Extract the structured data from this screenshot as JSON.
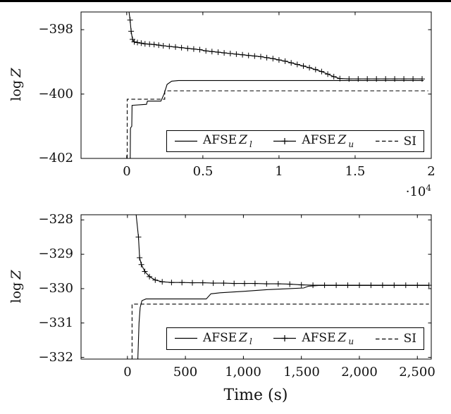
{
  "figure": {
    "background": "#ffffff",
    "line_color": "#000000"
  },
  "chart_data": [
    {
      "type": "line",
      "title": "",
      "ylabel_prefix": "log",
      "ylabel_var": "Z",
      "x_mult_base": "·10",
      "x_mult_exp": "4",
      "xlim": [
        -3000,
        20000
      ],
      "ylim": [
        -402,
        -397.45
      ],
      "xticks": [
        0,
        5000,
        10000,
        15000,
        20000
      ],
      "xtick_labels": [
        "0",
        "0.5",
        "1",
        "1.5",
        "2"
      ],
      "yticks": [
        -398,
        -400,
        -402
      ],
      "ytick_labels": [
        "−398",
        "−400",
        "−402"
      ],
      "grid": "off",
      "legend_position": "lower-right",
      "legend": [
        {
          "prefix": "AFSE",
          "var": "Z",
          "sub": "l",
          "style": "solid"
        },
        {
          "prefix": "AFSE",
          "var": "Z",
          "sub": "u",
          "style": "plus"
        },
        {
          "prefix": "SI",
          "var": "",
          "sub": "",
          "style": "dashed"
        }
      ],
      "series": [
        {
          "name": "AFSE Z_l",
          "style": "solid",
          "marker": "none",
          "points": [
            [
              230,
              -402
            ],
            [
              245,
              -401.1
            ],
            [
              255,
              -401.05
            ],
            [
              330,
              -401.0
            ],
            [
              350,
              -400.35
            ],
            [
              1300,
              -400.32
            ],
            [
              1360,
              -400.22
            ],
            [
              2250,
              -400.22
            ],
            [
              2450,
              -400.0
            ],
            [
              2650,
              -399.7
            ],
            [
              2950,
              -399.6
            ],
            [
              3400,
              -399.58
            ],
            [
              19500,
              -399.58
            ]
          ]
        },
        {
          "name": "AFSE Z_u",
          "style": "solid",
          "marker": "plus",
          "points": [
            [
              150,
              -397.45
            ],
            [
              220,
              -397.7
            ],
            [
              290,
              -398.05
            ],
            [
              380,
              -398.3
            ],
            [
              500,
              -398.38
            ],
            [
              700,
              -398.4
            ],
            [
              950,
              -398.42
            ],
            [
              1200,
              -398.44
            ],
            [
              1500,
              -398.45
            ],
            [
              1800,
              -398.46
            ],
            [
              2100,
              -398.48
            ],
            [
              2400,
              -398.5
            ],
            [
              2800,
              -398.52
            ],
            [
              3200,
              -398.54
            ],
            [
              3600,
              -398.56
            ],
            [
              4000,
              -398.58
            ],
            [
              4400,
              -398.6
            ],
            [
              4800,
              -398.62
            ],
            [
              5200,
              -398.66
            ],
            [
              5600,
              -398.68
            ],
            [
              6000,
              -398.7
            ],
            [
              6400,
              -398.72
            ],
            [
              6800,
              -398.74
            ],
            [
              7200,
              -398.76
            ],
            [
              7600,
              -398.78
            ],
            [
              8000,
              -398.8
            ],
            [
              8400,
              -398.82
            ],
            [
              8800,
              -398.84
            ],
            [
              9200,
              -398.87
            ],
            [
              9600,
              -398.9
            ],
            [
              10000,
              -398.94
            ],
            [
              10400,
              -398.98
            ],
            [
              10800,
              -399.03
            ],
            [
              11200,
              -399.08
            ],
            [
              11600,
              -399.13
            ],
            [
              12000,
              -399.18
            ],
            [
              12400,
              -399.24
            ],
            [
              12800,
              -399.3
            ],
            [
              13200,
              -399.38
            ],
            [
              13600,
              -399.46
            ],
            [
              14000,
              -399.52
            ],
            [
              14600,
              -399.53
            ],
            [
              15200,
              -399.53
            ],
            [
              15800,
              -399.53
            ],
            [
              16400,
              -399.53
            ],
            [
              17000,
              -399.53
            ],
            [
              17600,
              -399.53
            ],
            [
              18200,
              -399.53
            ],
            [
              18800,
              -399.53
            ],
            [
              19400,
              -399.53
            ]
          ]
        },
        {
          "name": "SI",
          "style": "dashed",
          "marker": "none",
          "points": [
            [
              30,
              -402
            ],
            [
              30,
              -400.16
            ],
            [
              2500,
              -400.16
            ],
            [
              2500,
              -399.9
            ],
            [
              19800,
              -399.9
            ]
          ]
        }
      ]
    },
    {
      "type": "line",
      "title": "",
      "xlabel": "Time (s)",
      "ylabel_prefix": "log",
      "ylabel_var": "Z",
      "xlim": [
        -400,
        2620
      ],
      "ylim": [
        -332.05,
        -327.85
      ],
      "xticks": [
        0,
        500,
        1000,
        1500,
        2000,
        2500
      ],
      "xtick_labels": [
        "0",
        "500",
        "1,000",
        "1,500",
        "2,000",
        "2,500"
      ],
      "yticks": [
        -328,
        -329,
        -330,
        -331,
        -332
      ],
      "ytick_labels": [
        "−328",
        "−329",
        "−330",
        "−331",
        "−332"
      ],
      "grid": "off",
      "legend_position": "lower-right",
      "legend": [
        {
          "prefix": "AFSE",
          "var": "Z",
          "sub": "l",
          "style": "solid"
        },
        {
          "prefix": "AFSE",
          "var": "Z",
          "sub": "u",
          "style": "plus"
        },
        {
          "prefix": "SI",
          "var": "",
          "sub": "",
          "style": "dashed"
        }
      ],
      "series": [
        {
          "name": "AFSE Z_l",
          "style": "solid",
          "marker": "none",
          "points": [
            [
              90,
              -332.05
            ],
            [
              100,
              -331.0
            ],
            [
              110,
              -330.55
            ],
            [
              125,
              -330.35
            ],
            [
              160,
              -330.3
            ],
            [
              680,
              -330.3
            ],
            [
              720,
              -330.15
            ],
            [
              800,
              -330.12
            ],
            [
              1000,
              -330.08
            ],
            [
              1200,
              -330.03
            ],
            [
              1400,
              -330.0
            ],
            [
              1520,
              -329.98
            ],
            [
              1560,
              -329.93
            ],
            [
              1650,
              -329.91
            ],
            [
              2600,
              -329.91
            ]
          ]
        },
        {
          "name": "AFSE Z_u",
          "style": "solid",
          "marker": "plus",
          "points": [
            [
              75,
              -327.85
            ],
            [
              95,
              -328.5
            ],
            [
              105,
              -329.1
            ],
            [
              120,
              -329.3
            ],
            [
              150,
              -329.5
            ],
            [
              190,
              -329.65
            ],
            [
              240,
              -329.75
            ],
            [
              300,
              -329.8
            ],
            [
              380,
              -329.82
            ],
            [
              470,
              -329.82
            ],
            [
              560,
              -329.83
            ],
            [
              650,
              -329.83
            ],
            [
              740,
              -329.84
            ],
            [
              830,
              -329.84
            ],
            [
              920,
              -329.85
            ],
            [
              1010,
              -329.85
            ],
            [
              1100,
              -329.85
            ],
            [
              1200,
              -329.86
            ],
            [
              1300,
              -329.86
            ],
            [
              1400,
              -329.87
            ],
            [
              1500,
              -329.89
            ],
            [
              1600,
              -329.9
            ],
            [
              1700,
              -329.9
            ],
            [
              1800,
              -329.9
            ],
            [
              1900,
              -329.9
            ],
            [
              2000,
              -329.9
            ],
            [
              2100,
              -329.9
            ],
            [
              2200,
              -329.9
            ],
            [
              2300,
              -329.9
            ],
            [
              2400,
              -329.9
            ],
            [
              2500,
              -329.9
            ],
            [
              2600,
              -329.9
            ]
          ]
        },
        {
          "name": "SI",
          "style": "dashed",
          "marker": "none",
          "points": [
            [
              40,
              -332.05
            ],
            [
              40,
              -330.45
            ],
            [
              2600,
              -330.45
            ]
          ]
        }
      ]
    }
  ]
}
